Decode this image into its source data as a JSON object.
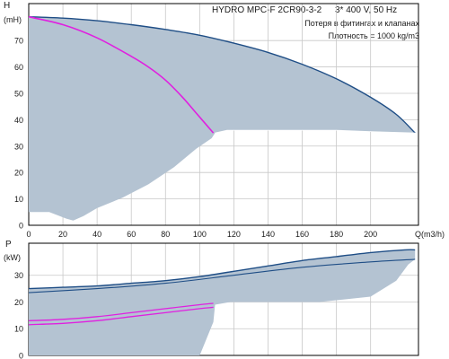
{
  "header": {
    "model": "HYDRO MPC-F 2CR90-3-2",
    "supply": "3* 400 V, 50 Hz",
    "note_losses": "Потеря в фитингах и клапанах",
    "note_density": "Плотность = 1000 kg/m3"
  },
  "colors": {
    "envelope_fill": "#b4c3d2",
    "envelope_edge": "#1f4e86",
    "duty_curve": "#e020e0",
    "grid": "#c8c8c8",
    "axis": "#000000"
  },
  "chart_data": [
    {
      "type": "area",
      "name": "head",
      "ylabel": "H",
      "yunit": "(mH)",
      "xlabel": "Q(m3/h)",
      "xlim": [
        0,
        228
      ],
      "ylim": [
        0,
        84
      ],
      "x_ticks": [
        "0",
        "20",
        "40",
        "60",
        "80",
        "100",
        "120",
        "140",
        "160",
        "180",
        "200"
      ],
      "y_ticks": [
        "0",
        "10",
        "20",
        "30",
        "40",
        "50",
        "60",
        "70"
      ],
      "grid": true,
      "envelope_top": [
        [
          0,
          79
        ],
        [
          20,
          78.5
        ],
        [
          40,
          77.5
        ],
        [
          60,
          76
        ],
        [
          80,
          74.2
        ],
        [
          100,
          72
        ],
        [
          120,
          69
        ],
        [
          140,
          65.5
        ],
        [
          160,
          61
        ],
        [
          180,
          55.5
        ],
        [
          200,
          48.5
        ],
        [
          215,
          42
        ],
        [
          226,
          35
        ]
      ],
      "envelope_bottom": [
        [
          0,
          5
        ],
        [
          12,
          5
        ],
        [
          22,
          2.5
        ],
        [
          26,
          1.8
        ],
        [
          32,
          3.5
        ],
        [
          40,
          6.5
        ],
        [
          55,
          10.5
        ],
        [
          70,
          15.5
        ],
        [
          85,
          22
        ],
        [
          98,
          29
        ],
        [
          107,
          33
        ],
        [
          109,
          35
        ]
      ],
      "envelope_inner": [
        [
          109,
          35
        ],
        [
          116,
          36
        ],
        [
          140,
          36
        ],
        [
          160,
          36
        ],
        [
          180,
          36
        ],
        [
          200,
          35.5
        ],
        [
          226,
          35
        ]
      ],
      "series": [
        {
          "x": [
            0,
            20,
            40,
            60,
            70,
            80,
            90,
            98,
            104,
            108
          ],
          "y": [
            79,
            76,
            71,
            64,
            60,
            55,
            48.5,
            42.5,
            38,
            35
          ]
        }
      ]
    },
    {
      "type": "area",
      "name": "power",
      "ylabel": "P",
      "yunit": "(kW)",
      "xlim": [
        0,
        228
      ],
      "ylim": [
        0,
        42
      ],
      "y_ticks": [
        "0",
        "10",
        "20",
        "30"
      ],
      "grid": true,
      "envelope_top": [
        [
          0,
          25
        ],
        [
          20,
          25.5
        ],
        [
          40,
          26
        ],
        [
          60,
          27
        ],
        [
          80,
          28
        ],
        [
          100,
          29.5
        ],
        [
          120,
          31.5
        ],
        [
          140,
          33.5
        ],
        [
          160,
          35.5
        ],
        [
          180,
          37
        ],
        [
          200,
          38.5
        ],
        [
          220,
          39.5
        ],
        [
          226,
          39.5
        ]
      ],
      "envelope_lower_edge": [
        [
          0,
          23.5
        ],
        [
          40,
          25
        ],
        [
          80,
          27
        ],
        [
          120,
          30
        ],
        [
          160,
          33
        ],
        [
          200,
          35
        ],
        [
          226,
          36
        ]
      ],
      "envelope_bottom": [
        [
          0,
          0
        ],
        [
          100,
          0
        ],
        [
          108,
          12.5
        ],
        [
          109,
          19
        ]
      ],
      "envelope_right_bottom": [
        [
          109,
          19
        ],
        [
          118,
          20
        ],
        [
          140,
          20
        ],
        [
          170,
          20
        ],
        [
          200,
          22
        ],
        [
          215,
          28
        ],
        [
          222,
          34
        ],
        [
          226,
          36
        ]
      ],
      "series": [
        {
          "x": [
            0,
            20,
            40,
            60,
            80,
            100,
            108
          ],
          "y": [
            13,
            13.5,
            14.5,
            16,
            17.5,
            19,
            19.5
          ]
        },
        {
          "x": [
            0,
            20,
            40,
            60,
            80,
            100,
            108
          ],
          "y": [
            11.5,
            12,
            13,
            14.5,
            16,
            17.5,
            18
          ]
        }
      ]
    }
  ]
}
